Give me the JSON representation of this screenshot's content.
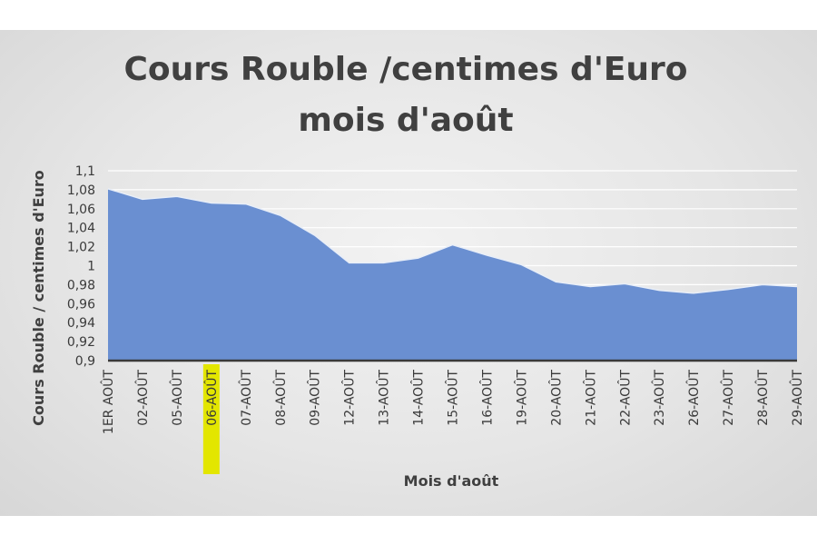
{
  "chart_data": {
    "type": "area",
    "title_lines": [
      "Cours Rouble /centimes d'Euro",
      "mois d'août"
    ],
    "xlabel": "Mois d'août",
    "ylabel": "Cours Rouble / centimes d'Euro",
    "categories": [
      "1ER AOÛT",
      "02-AOÛT",
      "05-AOÛT",
      "06-AOÛT",
      "07-AOÛT",
      "08-AOÛT",
      "09-AOÛT",
      "12-AOÛT",
      "13-AOÛT",
      "14-AOÛT",
      "15-AOÛT",
      "16-AOÛT",
      "19-AOÛT",
      "20-AOÛT",
      "21-AOÛT",
      "22-AOÛT",
      "23-AOÛT",
      "26-AOÛT",
      "27-AOÛT",
      "28-AOÛT",
      "29-AOÛT"
    ],
    "values": [
      1.081,
      1.07,
      1.073,
      1.066,
      1.065,
      1.053,
      1.032,
      1.003,
      1.003,
      1.008,
      1.022,
      1.011,
      1.001,
      0.983,
      0.978,
      0.981,
      0.974,
      0.971,
      0.975,
      0.98,
      0.978
    ],
    "ylim": [
      0.9,
      1.1
    ],
    "yticks": [
      0.9,
      0.92,
      0.94,
      0.96,
      0.98,
      1,
      1.02,
      1.04,
      1.06,
      1.08,
      1.1
    ],
    "ytick_labels": [
      "0,9",
      "0,92",
      "0,94",
      "0,96",
      "0,98",
      "1",
      "1,02",
      "1,04",
      "1,06",
      "1,08",
      "1,1"
    ],
    "highlighted_category": "06-AOÛT",
    "grid": true,
    "legend": "none",
    "colors": {
      "area_fill": "#6a8fd1",
      "area_line": "#e8eef8",
      "highlight": "#e3e600",
      "text": "#404040"
    }
  }
}
